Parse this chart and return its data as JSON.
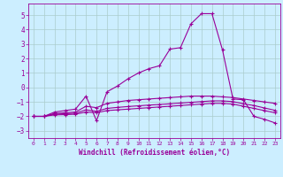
{
  "background_color": "#cceeff",
  "grid_color": "#aacccc",
  "line_color": "#990099",
  "xlabel": "Windchill (Refroidissement éolien,°C)",
  "xlim": [
    -0.5,
    23.5
  ],
  "ylim": [
    -3.5,
    5.8
  ],
  "yticks": [
    -3,
    -2,
    -1,
    0,
    1,
    2,
    3,
    4,
    5
  ],
  "xticks": [
    0,
    1,
    2,
    3,
    4,
    5,
    6,
    7,
    8,
    9,
    10,
    11,
    12,
    13,
    14,
    15,
    16,
    17,
    18,
    19,
    20,
    21,
    22,
    23
  ],
  "series": [
    {
      "x": [
        0,
        1,
        2,
        3,
        4,
        5,
        6,
        7,
        8,
        9,
        10,
        11,
        12,
        13,
        14,
        15,
        16,
        17,
        18,
        19,
        20,
        21,
        22,
        23
      ],
      "y": [
        -2.0,
        -2.0,
        -1.7,
        -1.6,
        -1.5,
        -0.6,
        -2.3,
        -0.3,
        0.1,
        0.6,
        1.0,
        1.3,
        1.5,
        2.65,
        2.75,
        4.4,
        5.1,
        5.1,
        2.6,
        -0.8,
        -0.85,
        -2.0,
        -2.2,
        -2.45
      ]
    },
    {
      "x": [
        0,
        1,
        2,
        3,
        4,
        5,
        6,
        7,
        8,
        9,
        10,
        11,
        12,
        13,
        14,
        15,
        16,
        17,
        18,
        19,
        20,
        21,
        22,
        23
      ],
      "y": [
        -2.0,
        -2.0,
        -1.8,
        -1.75,
        -1.7,
        -1.3,
        -1.4,
        -1.1,
        -1.0,
        -0.9,
        -0.85,
        -0.8,
        -0.75,
        -0.7,
        -0.65,
        -0.6,
        -0.6,
        -0.6,
        -0.65,
        -0.7,
        -0.8,
        -0.9,
        -1.0,
        -1.1
      ]
    },
    {
      "x": [
        0,
        1,
        2,
        3,
        4,
        5,
        6,
        7,
        8,
        9,
        10,
        11,
        12,
        13,
        14,
        15,
        16,
        17,
        18,
        19,
        20,
        21,
        22,
        23
      ],
      "y": [
        -2.0,
        -2.0,
        -1.85,
        -1.82,
        -1.78,
        -1.55,
        -1.65,
        -1.45,
        -1.38,
        -1.32,
        -1.27,
        -1.22,
        -1.18,
        -1.13,
        -1.08,
        -1.03,
        -0.98,
        -0.93,
        -0.93,
        -0.98,
        -1.13,
        -1.25,
        -1.42,
        -1.58
      ]
    },
    {
      "x": [
        0,
        1,
        2,
        3,
        4,
        5,
        6,
        7,
        8,
        9,
        10,
        11,
        12,
        13,
        14,
        15,
        16,
        17,
        18,
        19,
        20,
        21,
        22,
        23
      ],
      "y": [
        -2.0,
        -2.0,
        -1.9,
        -1.88,
        -1.85,
        -1.7,
        -1.75,
        -1.6,
        -1.55,
        -1.5,
        -1.45,
        -1.4,
        -1.35,
        -1.3,
        -1.25,
        -1.2,
        -1.15,
        -1.1,
        -1.1,
        -1.15,
        -1.3,
        -1.45,
        -1.6,
        -1.75
      ]
    }
  ]
}
